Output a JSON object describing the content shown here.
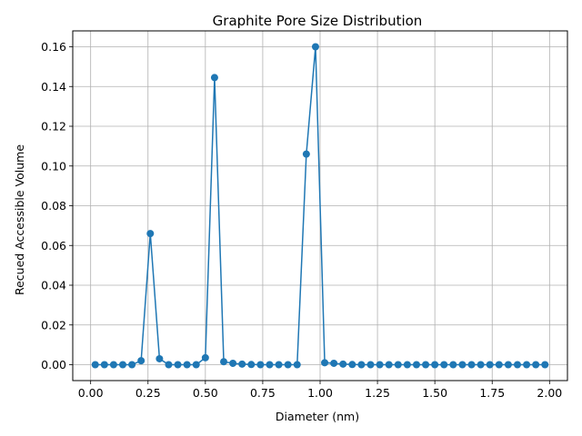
{
  "chart_data": {
    "type": "line",
    "title": "Graphite Pore Size Distribution",
    "xlabel": "Diameter (nm)",
    "ylabel": "Recued Accessible Volume",
    "xlim": [
      -0.078,
      2.078
    ],
    "ylim": [
      -0.008,
      0.168
    ],
    "xticks": [
      0.0,
      0.25,
      0.5,
      0.75,
      1.0,
      1.25,
      1.5,
      1.75,
      2.0
    ],
    "xtick_labels": [
      "0.00",
      "0.25",
      "0.50",
      "0.75",
      "1.00",
      "1.25",
      "1.50",
      "1.75",
      "2.00"
    ],
    "yticks": [
      0.0,
      0.02,
      0.04,
      0.06,
      0.08,
      0.1,
      0.12,
      0.14,
      0.16
    ],
    "ytick_labels": [
      "0.00",
      "0.02",
      "0.04",
      "0.06",
      "0.08",
      "0.10",
      "0.12",
      "0.14",
      "0.16"
    ],
    "grid": true,
    "legend": "none",
    "colors": {
      "line": "#1f77b4",
      "grid": "#b0b0b0"
    },
    "series": [
      {
        "x": [
          0.02,
          0.06,
          0.1,
          0.14,
          0.18,
          0.22,
          0.26,
          0.3,
          0.34,
          0.38,
          0.42,
          0.46,
          0.5,
          0.54,
          0.58,
          0.62,
          0.66,
          0.7,
          0.74,
          0.78,
          0.82,
          0.86,
          0.9,
          0.94,
          0.98,
          1.02,
          1.06,
          1.1,
          1.14,
          1.18,
          1.22,
          1.26,
          1.3,
          1.34,
          1.38,
          1.42,
          1.46,
          1.5,
          1.54,
          1.58,
          1.62,
          1.66,
          1.7,
          1.74,
          1.78,
          1.82,
          1.86,
          1.9,
          1.94,
          1.98
        ],
        "y": [
          0.0,
          0.0,
          0.0,
          0.0,
          0.0,
          0.002,
          0.066,
          0.003,
          0.0,
          0.0,
          0.0,
          0.0,
          0.0035,
          0.1445,
          0.0015,
          0.0007,
          0.0003,
          0.0001,
          0.0,
          0.0,
          0.0,
          0.0,
          0.0,
          0.106,
          0.16,
          0.001,
          0.0007,
          0.0003,
          0.0001,
          0.0,
          0.0,
          0.0,
          0.0,
          0.0,
          0.0,
          0.0,
          0.0,
          0.0,
          0.0,
          0.0,
          0.0,
          0.0,
          0.0,
          0.0,
          0.0,
          0.0,
          0.0,
          0.0,
          0.0,
          0.0
        ]
      }
    ]
  }
}
